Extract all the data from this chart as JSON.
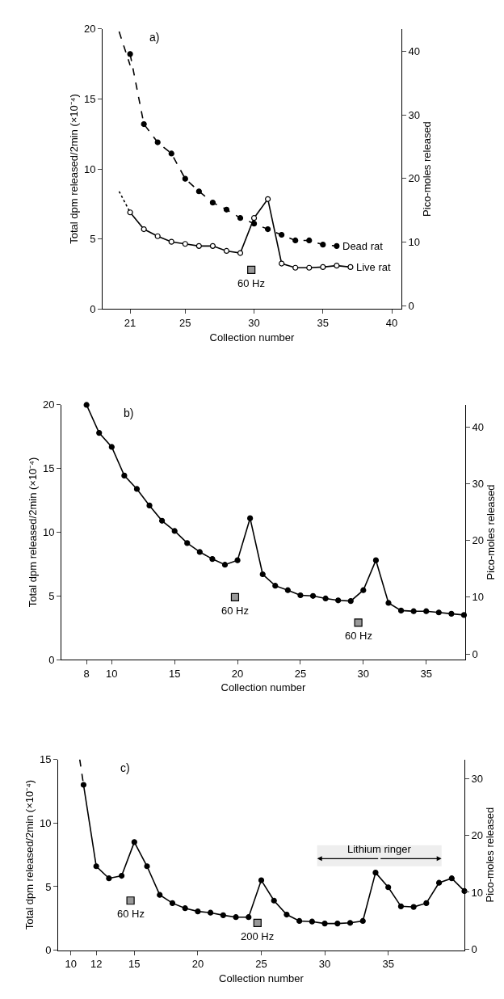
{
  "chart_data": [
    {
      "type": "line",
      "title": "a)",
      "xlabel": "Collection number",
      "ylabel": "Total dpm released/2min (×10⁻⁴)",
      "y2label": "Pico-moles released",
      "xlim": [
        19,
        40.7
      ],
      "xticks": [
        21,
        25,
        30,
        35,
        40
      ],
      "ylim": [
        0,
        20
      ],
      "yticks": [
        0,
        5,
        10,
        15,
        20
      ],
      "y2lim": [
        -0.5,
        43.5
      ],
      "y2ticks": [
        0,
        10,
        20,
        30,
        40
      ],
      "grid": false,
      "series": [
        {
          "name": "Dead rat",
          "color": "#000000",
          "marker": "circle",
          "line_style": "dashed",
          "x": [
            21,
            22,
            23,
            24,
            25,
            26,
            27,
            28,
            29,
            30,
            31,
            32,
            33,
            34,
            35,
            36
          ],
          "values": [
            18.2,
            13.2,
            11.9,
            11.1,
            9.3,
            8.4,
            7.6,
            7.1,
            6.5,
            6.1,
            5.7,
            5.3,
            4.9,
            4.9,
            4.6,
            4.5
          ]
        },
        {
          "color": "#000000",
          "marker": "none",
          "line_style": "dashed",
          "x": [
            20.2,
            21
          ],
          "values": [
            19.8,
            17.4
          ]
        },
        {
          "name": "Live rat",
          "color": "#000000",
          "marker": "circle-open",
          "line_style": "solid",
          "x": [
            21,
            22,
            23,
            24,
            25,
            26,
            27,
            28,
            29,
            30,
            31,
            32,
            33,
            34,
            35,
            36,
            37
          ],
          "values": [
            6.9,
            5.7,
            5.2,
            4.8,
            4.65,
            4.5,
            4.5,
            4.15,
            4.0,
            6.5,
            7.85,
            3.25,
            2.95,
            2.95,
            3.0,
            3.1,
            3.0
          ]
        },
        {
          "color": "#000000",
          "marker": "none",
          "line_style": "dotted",
          "x": [
            20.2,
            21
          ],
          "values": [
            8.4,
            6.9
          ]
        },
        {
          "type": "scatter",
          "color": "#999999",
          "marker": "square",
          "x": [
            29.8
          ],
          "values": [
            2.8
          ]
        }
      ],
      "annotations": [
        {
          "text": "60 Hz",
          "x": 29.8,
          "y": 2.8
        }
      ]
    },
    {
      "type": "line",
      "title": "b)",
      "xlabel": "Collection number",
      "ylabel": "Total dpm released/2min (×10⁻⁴)",
      "y2label": "Pico-moles released",
      "xlim": [
        6,
        38.1
      ],
      "xticks": [
        8,
        10,
        15,
        20,
        25,
        30,
        35
      ],
      "ylim": [
        0,
        20
      ],
      "yticks": [
        0,
        5,
        10,
        15,
        20
      ],
      "y2lim": [
        -1,
        43.9
      ],
      "y2ticks": [
        0,
        10,
        20,
        30,
        40
      ],
      "grid": false,
      "series": [
        {
          "color": "#000000",
          "marker": "circle",
          "line_style": "solid",
          "x": [
            8,
            9,
            10,
            11,
            12,
            13,
            14,
            15,
            16,
            17,
            18,
            19,
            20,
            21,
            22,
            23,
            24,
            25,
            26,
            27,
            28,
            29,
            30,
            31,
            32,
            33,
            34,
            35,
            36,
            37,
            38
          ],
          "values": [
            20.0,
            17.8,
            16.7,
            14.45,
            13.4,
            12.1,
            10.9,
            10.1,
            9.15,
            8.45,
            7.9,
            7.45,
            7.8,
            11.1,
            6.7,
            5.8,
            5.45,
            5.05,
            5.0,
            4.8,
            4.65,
            4.6,
            5.45,
            7.8,
            4.45,
            3.85,
            3.8,
            3.8,
            3.7,
            3.6,
            3.5
          ]
        },
        {
          "type": "scatter",
          "color": "#999999",
          "marker": "square",
          "x": [
            19.8,
            29.6
          ],
          "values": [
            4.9,
            2.9
          ]
        }
      ],
      "annotations": [
        {
          "text": "60 Hz",
          "x": 19.8,
          "y": 4.9
        },
        {
          "text": "60 Hz",
          "x": 29.6,
          "y": 2.9
        }
      ]
    },
    {
      "type": "line",
      "title": "c)",
      "xlabel": "Collection number",
      "ylabel": "Total dpm released/2min (×10⁻⁴)",
      "y2label": "Pico-moles released",
      "xlim": [
        9,
        41
      ],
      "xticks": [
        10,
        12,
        15,
        20,
        25,
        30,
        35
      ],
      "ylim": [
        0,
        15
      ],
      "yticks": [
        0,
        5,
        10,
        15
      ],
      "y2lim": [
        -0.2,
        33.4
      ],
      "y2ticks": [
        0,
        10,
        20,
        30
      ],
      "grid": false,
      "series": [
        {
          "color": "#000000",
          "marker": "circle",
          "line_style": "solid",
          "x": [
            11,
            12,
            13,
            14,
            15,
            16,
            17,
            18,
            19,
            20,
            21,
            22,
            23,
            24,
            25,
            26,
            27,
            28,
            29,
            30,
            31,
            32,
            33,
            34,
            35,
            36,
            37,
            38,
            39,
            40,
            41
          ],
          "values": [
            13.0,
            6.6,
            5.65,
            5.85,
            8.5,
            6.6,
            4.35,
            3.7,
            3.3,
            3.05,
            2.95,
            2.75,
            2.6,
            2.6,
            5.5,
            3.9,
            2.8,
            2.3,
            2.25,
            2.1,
            2.1,
            2.15,
            2.3,
            6.1,
            4.95,
            3.45,
            3.4,
            3.7,
            5.3,
            5.65,
            4.65
          ]
        },
        {
          "color": "#000000",
          "marker": "none",
          "line_style": "dashed",
          "x": [
            10.7,
            11
          ],
          "values": [
            15,
            13.0
          ]
        },
        {
          "type": "scatter",
          "color": "#999999",
          "marker": "square",
          "x": [
            14.7,
            24.7
          ],
          "values": [
            3.9,
            2.15
          ]
        }
      ],
      "bands": [
        {
          "axis": "x",
          "from": 29.4,
          "to": 39.2,
          "label": "Lithium ringer",
          "color": "#eeeeee"
        }
      ],
      "annotations": [
        {
          "text": "60 Hz",
          "x": 14.7,
          "y": 3.9
        },
        {
          "text": "200 Hz",
          "x": 24.7,
          "y": 2.15
        }
      ]
    }
  ]
}
